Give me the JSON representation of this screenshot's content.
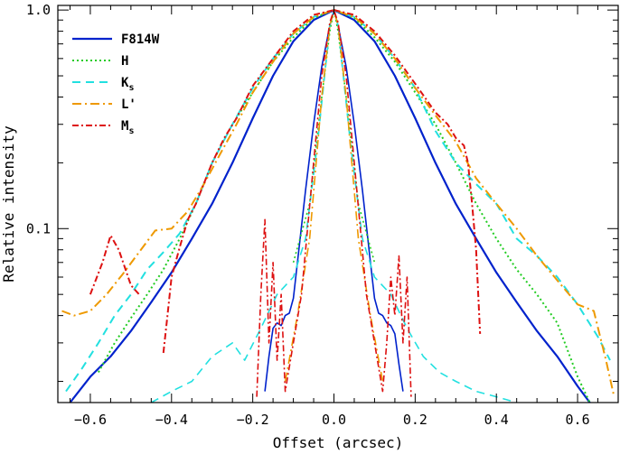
{
  "chart_data": {
    "type": "line",
    "title": "",
    "xlabel": "Offset (arcsec)",
    "ylabel": "Relative intensity",
    "xlim": [
      -0.68,
      0.7
    ],
    "ylim": [
      0.016,
      1.05
    ],
    "yscale": "log",
    "grid": false,
    "legend_position": "top-left",
    "x_ticks": [
      {
        "value": -0.6,
        "label": "−0.6"
      },
      {
        "value": -0.4,
        "label": "−0.4"
      },
      {
        "value": -0.2,
        "label": "−0.2"
      },
      {
        "value": 0.0,
        "label": "0.0"
      },
      {
        "value": 0.2,
        "label": "0.2"
      },
      {
        "value": 0.4,
        "label": "0.4"
      },
      {
        "value": 0.6,
        "label": "0.6"
      }
    ],
    "y_ticks": [
      {
        "value": 0.1,
        "label": "0.1"
      },
      {
        "value": 1.0,
        "label": "1.0"
      }
    ],
    "series": [
      {
        "name": "F814W",
        "legend_main": "F814W",
        "legend_sub": "",
        "color": "#0022cc",
        "dash": "solid",
        "width": 2.2,
        "points": [
          [
            -0.65,
            0.016
          ],
          [
            -0.6,
            0.021
          ],
          [
            -0.55,
            0.026
          ],
          [
            -0.5,
            0.034
          ],
          [
            -0.45,
            0.046
          ],
          [
            -0.4,
            0.063
          ],
          [
            -0.35,
            0.09
          ],
          [
            -0.3,
            0.13
          ],
          [
            -0.25,
            0.2
          ],
          [
            -0.2,
            0.32
          ],
          [
            -0.15,
            0.5
          ],
          [
            -0.1,
            0.72
          ],
          [
            -0.05,
            0.9
          ],
          [
            0.0,
            1.0
          ],
          [
            0.05,
            0.9
          ],
          [
            0.1,
            0.72
          ],
          [
            0.15,
            0.5
          ],
          [
            0.2,
            0.32
          ],
          [
            0.25,
            0.2
          ],
          [
            0.3,
            0.13
          ],
          [
            0.35,
            0.09
          ],
          [
            0.4,
            0.063
          ],
          [
            0.45,
            0.046
          ],
          [
            0.5,
            0.034
          ],
          [
            0.55,
            0.026
          ],
          [
            0.6,
            0.019
          ],
          [
            0.63,
            0.016
          ]
        ]
      },
      {
        "name": "F814W-core",
        "legend_main": "",
        "legend_sub": "",
        "color": "#0022cc",
        "dash": "solid",
        "width": 1.6,
        "points": [
          [
            -0.17,
            0.018
          ],
          [
            -0.16,
            0.026
          ],
          [
            -0.15,
            0.035
          ],
          [
            -0.14,
            0.037
          ],
          [
            -0.13,
            0.036
          ],
          [
            -0.12,
            0.04
          ],
          [
            -0.11,
            0.041
          ],
          [
            -0.1,
            0.048
          ],
          [
            -0.09,
            0.07
          ],
          [
            -0.07,
            0.15
          ],
          [
            -0.05,
            0.3
          ],
          [
            -0.03,
            0.55
          ],
          [
            -0.01,
            0.85
          ],
          [
            0.0,
            1.0
          ],
          [
            0.01,
            0.85
          ],
          [
            0.03,
            0.55
          ],
          [
            0.05,
            0.3
          ],
          [
            0.07,
            0.15
          ],
          [
            0.09,
            0.07
          ],
          [
            0.1,
            0.048
          ],
          [
            0.11,
            0.041
          ],
          [
            0.12,
            0.04
          ],
          [
            0.13,
            0.037
          ],
          [
            0.14,
            0.036
          ],
          [
            0.15,
            0.033
          ],
          [
            0.16,
            0.024
          ],
          [
            0.17,
            0.018
          ]
        ]
      },
      {
        "name": "H",
        "legend_main": "H",
        "legend_sub": "",
        "color": "#22cc22",
        "dash": "2,3",
        "width": 2,
        "points": [
          [
            -0.58,
            0.022
          ],
          [
            -0.54,
            0.03
          ],
          [
            -0.5,
            0.039
          ],
          [
            -0.46,
            0.05
          ],
          [
            -0.42,
            0.065
          ],
          [
            -0.38,
            0.09
          ],
          [
            -0.34,
            0.13
          ],
          [
            -0.3,
            0.2
          ],
          [
            -0.25,
            0.3
          ],
          [
            -0.2,
            0.42
          ],
          [
            -0.15,
            0.58
          ],
          [
            -0.1,
            0.75
          ],
          [
            -0.05,
            0.92
          ],
          [
            0.0,
            1.0
          ],
          [
            0.05,
            0.92
          ],
          [
            0.1,
            0.75
          ],
          [
            0.15,
            0.58
          ],
          [
            0.2,
            0.42
          ],
          [
            0.25,
            0.3
          ],
          [
            0.3,
            0.2
          ],
          [
            0.35,
            0.13
          ],
          [
            0.4,
            0.09
          ],
          [
            0.45,
            0.065
          ],
          [
            0.5,
            0.05
          ],
          [
            0.55,
            0.037
          ],
          [
            0.6,
            0.021
          ],
          [
            0.63,
            0.016
          ]
        ]
      },
      {
        "name": "H-core",
        "legend_main": "",
        "legend_sub": "",
        "color": "#22cc22",
        "dash": "2,3",
        "width": 1.6,
        "points": [
          [
            -0.1,
            0.07
          ],
          [
            -0.06,
            0.13
          ],
          [
            -0.03,
            0.4
          ],
          [
            -0.01,
            0.8
          ],
          [
            0.0,
            1.0
          ],
          [
            0.01,
            0.8
          ],
          [
            0.03,
            0.4
          ],
          [
            0.06,
            0.13
          ],
          [
            0.1,
            0.07
          ]
        ]
      },
      {
        "name": "Ks",
        "legend_main": "K",
        "legend_sub": "s",
        "color": "#22e0e0",
        "dash": "9,6",
        "width": 2,
        "points": [
          [
            -0.66,
            0.018
          ],
          [
            -0.62,
            0.023
          ],
          [
            -0.58,
            0.03
          ],
          [
            -0.54,
            0.04
          ],
          [
            -0.5,
            0.05
          ],
          [
            -0.46,
            0.065
          ],
          [
            -0.42,
            0.078
          ],
          [
            -0.38,
            0.095
          ],
          [
            -0.34,
            0.13
          ],
          [
            -0.3,
            0.2
          ],
          [
            -0.25,
            0.3
          ],
          [
            -0.2,
            0.44
          ],
          [
            -0.15,
            0.6
          ],
          [
            -0.1,
            0.78
          ],
          [
            -0.05,
            0.93
          ],
          [
            0.0,
            1.0
          ],
          [
            0.05,
            0.93
          ],
          [
            0.1,
            0.78
          ],
          [
            0.15,
            0.6
          ],
          [
            0.2,
            0.44
          ],
          [
            0.25,
            0.28
          ],
          [
            0.3,
            0.2
          ],
          [
            0.35,
            0.16
          ],
          [
            0.4,
            0.13
          ],
          [
            0.45,
            0.09
          ],
          [
            0.5,
            0.075
          ],
          [
            0.55,
            0.06
          ],
          [
            0.6,
            0.045
          ],
          [
            0.65,
            0.032
          ],
          [
            0.68,
            0.025
          ]
        ]
      },
      {
        "name": "Ks-core",
        "legend_main": "",
        "legend_sub": "",
        "color": "#22e0e0",
        "dash": "9,6",
        "width": 1.6,
        "points": [
          [
            -0.45,
            0.016
          ],
          [
            -0.4,
            0.018
          ],
          [
            -0.35,
            0.02
          ],
          [
            -0.3,
            0.026
          ],
          [
            -0.25,
            0.03
          ],
          [
            -0.22,
            0.025
          ],
          [
            -0.18,
            0.035
          ],
          [
            -0.14,
            0.05
          ],
          [
            -0.1,
            0.06
          ],
          [
            -0.07,
            0.09
          ],
          [
            -0.04,
            0.25
          ],
          [
            -0.01,
            0.85
          ],
          [
            0.0,
            1.0
          ],
          [
            0.01,
            0.85
          ],
          [
            0.04,
            0.25
          ],
          [
            0.07,
            0.09
          ],
          [
            0.1,
            0.06
          ],
          [
            0.14,
            0.05
          ],
          [
            0.18,
            0.035
          ],
          [
            0.22,
            0.026
          ],
          [
            0.26,
            0.022
          ],
          [
            0.3,
            0.02
          ],
          [
            0.35,
            0.018
          ],
          [
            0.4,
            0.017
          ],
          [
            0.45,
            0.016
          ]
        ]
      },
      {
        "name": "L'",
        "legend_main": "L'",
        "legend_sub": "",
        "color": "#ee9900",
        "dash": "10,4,2,4",
        "width": 2,
        "points": [
          [
            -0.67,
            0.042
          ],
          [
            -0.64,
            0.04
          ],
          [
            -0.6,
            0.042
          ],
          [
            -0.56,
            0.05
          ],
          [
            -0.52,
            0.062
          ],
          [
            -0.48,
            0.078
          ],
          [
            -0.44,
            0.098
          ],
          [
            -0.4,
            0.1
          ],
          [
            -0.36,
            0.12
          ],
          [
            -0.32,
            0.16
          ],
          [
            -0.28,
            0.22
          ],
          [
            -0.24,
            0.3
          ],
          [
            -0.2,
            0.42
          ],
          [
            -0.15,
            0.58
          ],
          [
            -0.1,
            0.78
          ],
          [
            -0.05,
            0.93
          ],
          [
            0.0,
            1.0
          ],
          [
            0.05,
            0.93
          ],
          [
            0.1,
            0.78
          ],
          [
            0.15,
            0.6
          ],
          [
            0.2,
            0.44
          ],
          [
            0.25,
            0.33
          ],
          [
            0.3,
            0.25
          ],
          [
            0.35,
            0.17
          ],
          [
            0.4,
            0.13
          ],
          [
            0.45,
            0.1
          ],
          [
            0.5,
            0.075
          ],
          [
            0.55,
            0.058
          ],
          [
            0.6,
            0.045
          ],
          [
            0.64,
            0.042
          ],
          [
            0.67,
            0.025
          ],
          [
            0.69,
            0.017
          ]
        ]
      },
      {
        "name": "L'-core",
        "legend_main": "",
        "legend_sub": "",
        "color": "#ee9900",
        "dash": "10,4,2,4",
        "width": 1.6,
        "points": [
          [
            -0.12,
            0.02
          ],
          [
            -0.09,
            0.04
          ],
          [
            -0.06,
            0.09
          ],
          [
            -0.03,
            0.4
          ],
          [
            -0.01,
            0.85
          ],
          [
            0.0,
            1.0
          ],
          [
            0.01,
            0.85
          ],
          [
            0.03,
            0.4
          ],
          [
            0.06,
            0.09
          ],
          [
            0.09,
            0.04
          ],
          [
            0.12,
            0.02
          ]
        ]
      },
      {
        "name": "Ms",
        "legend_main": "M",
        "legend_sub": "s",
        "color": "#dd1111",
        "dash": "7,3,2,3",
        "width": 2,
        "points": [
          [
            -0.6,
            0.05
          ],
          [
            -0.57,
            0.07
          ],
          [
            -0.55,
            0.093
          ],
          [
            -0.53,
            0.08
          ],
          [
            -0.5,
            0.055
          ],
          [
            -0.48,
            0.05
          ]
        ]
      },
      {
        "name": "Ms-left",
        "legend_main": "",
        "legend_sub": "",
        "color": "#dd1111",
        "dash": "7,3,2,3",
        "width": 2,
        "points": [
          [
            -0.42,
            0.027
          ],
          [
            -0.41,
            0.04
          ],
          [
            -0.4,
            0.06
          ],
          [
            -0.38,
            0.082
          ],
          [
            -0.36,
            0.11
          ],
          [
            -0.34,
            0.13
          ],
          [
            -0.3,
            0.2
          ],
          [
            -0.27,
            0.26
          ],
          [
            -0.24,
            0.32
          ],
          [
            -0.2,
            0.45
          ],
          [
            -0.15,
            0.6
          ],
          [
            -0.1,
            0.8
          ],
          [
            -0.05,
            0.95
          ],
          [
            0.0,
            1.0
          ]
        ]
      },
      {
        "name": "Ms-right",
        "legend_main": "",
        "legend_sub": "",
        "color": "#dd1111",
        "dash": "7,3,2,3",
        "width": 2,
        "points": [
          [
            0.0,
            1.0
          ],
          [
            0.05,
            0.95
          ],
          [
            0.1,
            0.8
          ],
          [
            0.15,
            0.62
          ],
          [
            0.2,
            0.46
          ],
          [
            0.25,
            0.34
          ],
          [
            0.28,
            0.3
          ],
          [
            0.3,
            0.26
          ],
          [
            0.32,
            0.24
          ],
          [
            0.33,
            0.2
          ],
          [
            0.34,
            0.13
          ],
          [
            0.35,
            0.08
          ],
          [
            0.36,
            0.033
          ]
        ]
      },
      {
        "name": "Ms-core",
        "legend_main": "",
        "legend_sub": "",
        "color": "#dd1111",
        "dash": "7,3,2,3",
        "width": 1.6,
        "points": [
          [
            -0.19,
            0.017
          ],
          [
            -0.18,
            0.05
          ],
          [
            -0.17,
            0.11
          ],
          [
            -0.16,
            0.03
          ],
          [
            -0.15,
            0.07
          ],
          [
            -0.14,
            0.025
          ],
          [
            -0.13,
            0.05
          ],
          [
            -0.12,
            0.018
          ],
          [
            -0.08,
            0.05
          ],
          [
            -0.05,
            0.2
          ],
          [
            -0.03,
            0.5
          ],
          [
            -0.01,
            0.88
          ],
          [
            0.0,
            1.0
          ],
          [
            0.01,
            0.88
          ],
          [
            0.03,
            0.5
          ],
          [
            0.05,
            0.2
          ],
          [
            0.08,
            0.05
          ],
          [
            0.12,
            0.018
          ],
          [
            0.13,
            0.03
          ],
          [
            0.14,
            0.06
          ],
          [
            0.15,
            0.04
          ],
          [
            0.16,
            0.075
          ],
          [
            0.17,
            0.03
          ],
          [
            0.18,
            0.06
          ],
          [
            0.19,
            0.017
          ]
        ]
      }
    ]
  }
}
